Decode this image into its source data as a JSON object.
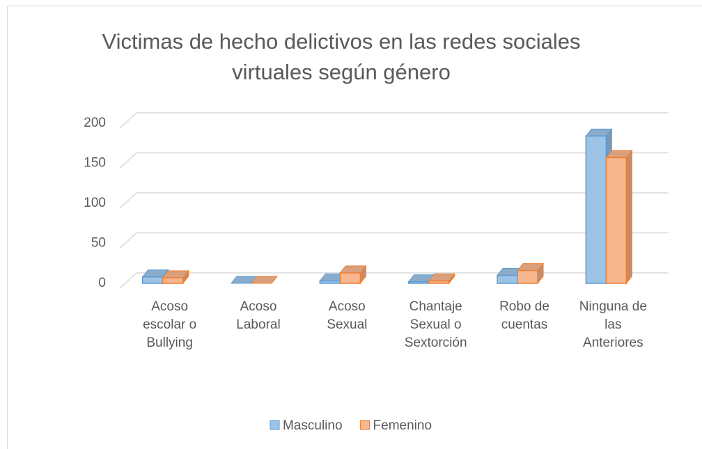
{
  "chart_data": {
    "type": "bar3d",
    "title": "Victimas de hecho delictivos en las redes sociales virtuales según género",
    "categories": [
      "Acoso escolar o Bullying",
      "Acoso Laboral",
      "Acoso Sexual",
      "Chantaje Sexual o Sextorción",
      "Robo de cuentas",
      "Ninguna de las Anteriores"
    ],
    "series": [
      {
        "name": "Masculino",
        "color": "#9dc3e6",
        "values": [
          8,
          0,
          3,
          2,
          10,
          184
        ]
      },
      {
        "name": "Femenino",
        "color": "#f8b68e",
        "values": [
          7,
          0,
          13,
          3,
          16,
          157
        ]
      }
    ],
    "ylim": [
      0,
      200
    ],
    "yticks": [
      0,
      50,
      100,
      150,
      200
    ],
    "grid": true,
    "legend": "bottom"
  }
}
